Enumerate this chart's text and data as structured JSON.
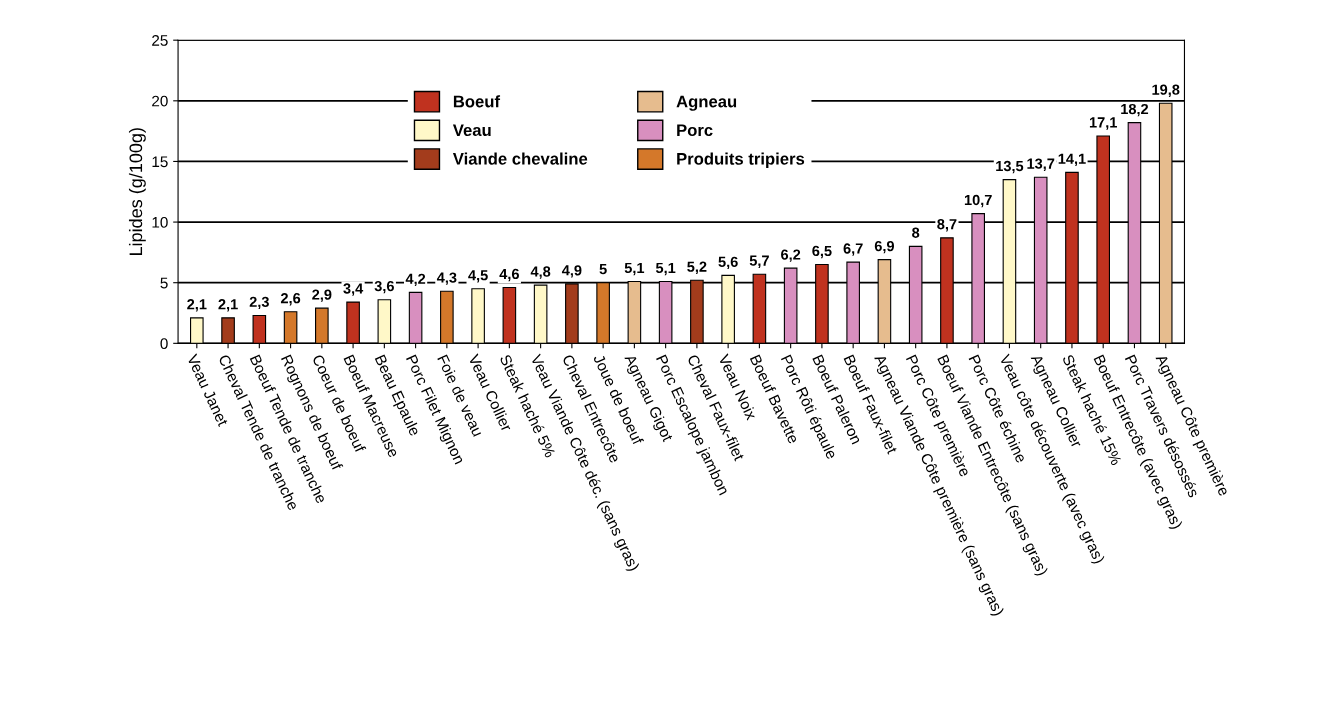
{
  "chart_data": {
    "type": "bar",
    "ylabel": "Lipides (g/100g)",
    "categories": [
      "Veau Janet",
      "Cheval Tende de tranche",
      "Boeuf Tende de tranche",
      "Rognons de boeuf",
      "Coeur de boeuf",
      "Boeuf Macreuse",
      "Beau Epaule",
      "Porc Filet Mignon",
      "Foie de veau",
      "Veau Collier",
      "Steak haché 5%",
      "Veau Viande Côte déc. (sans gras)",
      "Cheval Entrecôte",
      "Joue de boeuf",
      "Agneau Gigot",
      "Porc Escalope jambon",
      "Cheval Faux-filet",
      "Veau Noix",
      "Boeuf Bavette",
      "Porc Rôti épaule",
      "Boeuf Paleron",
      "Boeuf Faux-filet",
      "Agneau Viande Côte première (sans gras)",
      "Porc Côte première",
      "Boeuf Viande Entrecôte (sans gras)",
      "Porc Côte échine",
      "Veau côte découverte (avec gras)",
      "Agneau Collier",
      "Steak haché 15%",
      "Boeuf Entrecôte (avec gras)",
      "Porc Travers désossés",
      "Agneau Côte première"
    ],
    "series": [
      {
        "name": "Boeuf",
        "color": "#c0321f",
        "values": [
          null,
          null,
          2.3,
          null,
          null,
          3.4,
          null,
          null,
          null,
          null,
          4.6,
          null,
          null,
          null,
          null,
          null,
          null,
          null,
          5.7,
          null,
          6.5,
          null,
          null,
          null,
          8.7,
          null,
          null,
          null,
          14.1,
          17.1,
          null,
          null
        ],
        "value_labels": [
          null,
          null,
          "2,3",
          null,
          null,
          "3,4",
          null,
          null,
          null,
          null,
          "4,6",
          null,
          null,
          null,
          null,
          null,
          null,
          null,
          "5,7",
          null,
          "6,5",
          null,
          null,
          null,
          "8,7",
          null,
          null,
          null,
          "14,1",
          "17,1",
          null,
          null
        ]
      },
      {
        "name": "Veau",
        "color": "#fff8c8",
        "values": [
          2.1,
          null,
          null,
          null,
          null,
          null,
          3.6,
          null,
          null,
          4.5,
          null,
          4.8,
          null,
          null,
          null,
          null,
          null,
          5.6,
          null,
          null,
          null,
          null,
          null,
          null,
          null,
          null,
          13.5,
          null,
          null,
          null,
          null,
          null
        ],
        "value_labels": [
          "2,1",
          null,
          null,
          null,
          null,
          null,
          "3,6",
          null,
          null,
          "4,5",
          null,
          "4,8",
          null,
          null,
          null,
          null,
          null,
          "5,6",
          null,
          null,
          null,
          null,
          null,
          null,
          null,
          null,
          "13,5",
          null,
          null,
          null,
          null,
          null
        ]
      },
      {
        "name": "Viande chevaline",
        "color": "#a33c1c",
        "values": [
          null,
          2.1,
          null,
          null,
          null,
          null,
          null,
          null,
          null,
          null,
          null,
          null,
          4.9,
          null,
          null,
          null,
          5.2,
          null,
          null,
          null,
          null,
          null,
          null,
          null,
          null,
          null,
          null,
          null,
          null,
          null,
          null,
          null
        ],
        "value_labels": [
          null,
          "2,1",
          null,
          null,
          null,
          null,
          null,
          null,
          null,
          null,
          null,
          null,
          "4,9",
          null,
          null,
          null,
          "5,2",
          null,
          null,
          null,
          null,
          null,
          null,
          null,
          null,
          null,
          null,
          null,
          null,
          null,
          null,
          null
        ]
      },
      {
        "name": "Agneau",
        "color": "#e6bc8e",
        "values": [
          null,
          null,
          null,
          null,
          null,
          null,
          null,
          null,
          null,
          null,
          null,
          null,
          null,
          null,
          5.1,
          null,
          null,
          null,
          null,
          null,
          null,
          null,
          6.9,
          null,
          null,
          null,
          null,
          null,
          null,
          null,
          null,
          19.8
        ],
        "value_labels": [
          null,
          null,
          null,
          null,
          null,
          null,
          null,
          null,
          null,
          null,
          null,
          null,
          null,
          null,
          "5,1",
          null,
          null,
          null,
          null,
          null,
          null,
          null,
          "6,9",
          null,
          null,
          null,
          null,
          null,
          null,
          null,
          null,
          "19,8"
        ]
      },
      {
        "name": "Porc",
        "color": "#d88fbf",
        "values": [
          null,
          null,
          null,
          null,
          null,
          null,
          null,
          4.2,
          null,
          null,
          null,
          null,
          null,
          null,
          null,
          5.1,
          null,
          null,
          null,
          6.2,
          null,
          6.7,
          null,
          8,
          null,
          10.7,
          null,
          13.7,
          null,
          null,
          18.2,
          null
        ],
        "value_labels": [
          null,
          null,
          null,
          null,
          null,
          null,
          null,
          "4,2",
          null,
          null,
          null,
          null,
          null,
          null,
          null,
          "5,1",
          null,
          null,
          null,
          "6,2",
          null,
          "6,7",
          null,
          "8",
          null,
          "10,7",
          null,
          "13,7",
          null,
          null,
          "18,2",
          null
        ]
      },
      {
        "name": "Produits tripiers",
        "color": "#d4782a",
        "values": [
          null,
          null,
          null,
          2.6,
          2.9,
          null,
          null,
          null,
          4.3,
          null,
          null,
          null,
          null,
          5,
          null,
          null,
          null,
          null,
          null,
          null,
          null,
          null,
          null,
          null,
          null,
          null,
          null,
          null,
          null,
          null,
          null,
          null
        ],
        "value_labels": [
          null,
          null,
          null,
          "2,6",
          "2,9",
          null,
          null,
          null,
          "4,3",
          null,
          null,
          null,
          null,
          "5",
          null,
          null,
          null,
          null,
          null,
          null,
          null,
          null,
          null,
          null,
          null,
          null,
          null,
          null,
          null,
          null,
          null,
          null
        ]
      }
    ],
    "ylim": [
      0,
      25
    ],
    "yticks": [
      0,
      5,
      10,
      15,
      20,
      25
    ],
    "grid": "y",
    "legend": "top left"
  }
}
